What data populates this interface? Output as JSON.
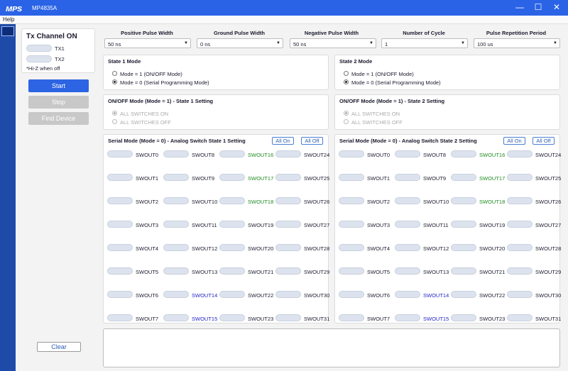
{
  "window": {
    "logo": "ᴍᴘs",
    "title": "MP4835A",
    "min": "—",
    "max": "☐",
    "close": "✕"
  },
  "menu": {
    "help": "Help"
  },
  "left": {
    "title": "Tx Channel ON",
    "tx1": "TX1",
    "tx2": "TX2",
    "hiz": "*Hi-Z when off",
    "start": "Start",
    "stop": "Stop",
    "find": "Find Device",
    "clear": "Clear"
  },
  "params": [
    {
      "label": "Positive Pulse Width",
      "value": "50 ns"
    },
    {
      "label": "Ground Pulse Width",
      "value": "0 ns"
    },
    {
      "label": "Negative Pulse Width",
      "value": "50 ns"
    },
    {
      "label": "Number of Cycle",
      "value": "1"
    },
    {
      "label": "Pulse Repetition Period",
      "value": "100 us"
    }
  ],
  "state1": {
    "title": "State 1 Mode",
    "opt1": "Mode = 1 (ON/OFF Mode)",
    "opt2": "Mode = 0 (Serial Programming Mode)",
    "selected": 2
  },
  "state2": {
    "title": "State 2 Mode",
    "opt1": "Mode = 1 (ON/OFF Mode)",
    "opt2": "Mode = 0 (Serial Programming Mode)",
    "selected": 2
  },
  "onoff1": {
    "title": "ON/OFF Mode (Mode = 1) - State 1 Setting",
    "opt1": "ALL SWITCHES ON",
    "opt2": "ALL SWITCHES OFF"
  },
  "onoff2": {
    "title": "ON/OFF Mode (Mode = 1) - State 2 Setting",
    "opt1": "ALL SWITCHES ON",
    "opt2": "ALL SWITCHES OFF"
  },
  "serial1": {
    "title": "Serial Mode (Mode = 0) - Analog Switch State 1 Setting",
    "allon": "All On",
    "alloff": "All Off"
  },
  "serial2": {
    "title": "Serial Mode (Mode = 0) - Analog Switch State 2 Setting",
    "allon": "All On",
    "alloff": "All Off"
  },
  "switches": [
    "SWOUT0",
    "SWOUT1",
    "SWOUT2",
    "SWOUT3",
    "SWOUT4",
    "SWOUT5",
    "SWOUT6",
    "SWOUT7",
    "SWOUT8",
    "SWOUT9",
    "SWOUT10",
    "SWOUT11",
    "SWOUT12",
    "SWOUT13",
    "SWOUT14",
    "SWOUT15",
    "SWOUT16",
    "SWOUT17",
    "SWOUT18",
    "SWOUT19",
    "SWOUT20",
    "SWOUT21",
    "SWOUT22",
    "SWOUT23",
    "SWOUT24",
    "SWOUT25",
    "SWOUT26",
    "SWOUT27",
    "SWOUT28",
    "SWOUT29",
    "SWOUT30",
    "SWOUT31"
  ],
  "switch_colors": {
    "SWOUT14": "#2424c8",
    "SWOUT15": "#2424c8",
    "SWOUT16": "#1f8a1f",
    "SWOUT17": "#1f8a1f",
    "SWOUT18": "#1f8a1f"
  },
  "log": {
    "text": ""
  }
}
